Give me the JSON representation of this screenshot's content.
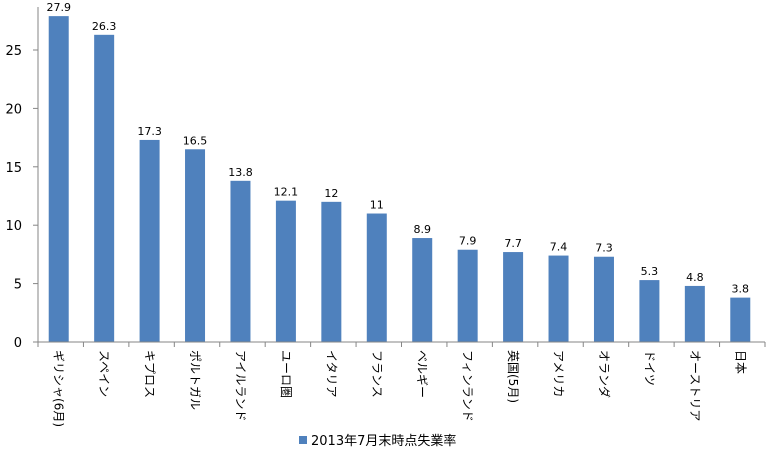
{
  "chart_data": {
    "type": "bar",
    "title": "",
    "xlabel": "",
    "ylabel": "",
    "categories": [
      "ギリシャ(6月)",
      "スペイン",
      "キプロス",
      "ポルトガル",
      "アイルランド",
      "ユーロ圏",
      "イタリア",
      "フランス",
      "ベルギー",
      "フィンランド",
      "英国(5月)",
      "アメリカ",
      "オランダ",
      "ドイツ",
      "オーストリア",
      "日本"
    ],
    "series": [
      {
        "name": "2013年7月末時点失業率",
        "values": [
          27.9,
          26.3,
          17.3,
          16.5,
          13.8,
          12.1,
          12,
          11,
          8.9,
          7.9,
          7.7,
          7.4,
          7.3,
          5.3,
          4.8,
          3.8
        ]
      }
    ],
    "data_labels": [
      "27.9",
      "26.3",
      "17.3",
      "16.5",
      "13.8",
      "12.1",
      "12",
      "11",
      "8.9",
      "7.9",
      "7.7",
      "7.4",
      "7.3",
      "5.3",
      "4.8",
      "3.8"
    ],
    "ylim": [
      0,
      28
    ],
    "yticks": [
      0,
      5,
      10,
      15,
      20,
      25
    ],
    "grid": false,
    "legend": "bottom",
    "bar_color": "#4f81bd"
  }
}
